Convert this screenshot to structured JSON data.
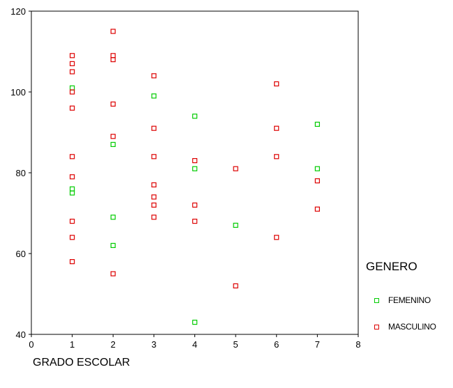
{
  "chart_data": {
    "type": "scatter",
    "xlabel": "GRADO ESCOLAR",
    "ylabel": "",
    "xlim": [
      0,
      8
    ],
    "ylim": [
      40,
      120
    ],
    "xticks": [
      "0",
      "1",
      "2",
      "3",
      "4",
      "5",
      "6",
      "7",
      "8"
    ],
    "yticks": [
      "40",
      "60",
      "80",
      "100",
      "120"
    ],
    "grid": false,
    "legend": {
      "title": "GENERO",
      "placement": "right"
    },
    "series": [
      {
        "name": "FEMENINO",
        "color": "#00cc00",
        "points": [
          [
            1,
            101
          ],
          [
            1,
            76
          ],
          [
            1,
            75
          ],
          [
            2,
            87
          ],
          [
            2,
            69
          ],
          [
            2,
            62
          ],
          [
            3,
            99
          ],
          [
            4,
            94
          ],
          [
            4,
            81
          ],
          [
            4,
            43
          ],
          [
            5,
            67
          ],
          [
            7,
            92
          ],
          [
            7,
            81
          ]
        ]
      },
      {
        "name": "MASCULINO",
        "color": "#dd0000",
        "points": [
          [
            1,
            109
          ],
          [
            1,
            107
          ],
          [
            1,
            105
          ],
          [
            1,
            100
          ],
          [
            1,
            96
          ],
          [
            1,
            84
          ],
          [
            1,
            79
          ],
          [
            1,
            68
          ],
          [
            1,
            64
          ],
          [
            1,
            58
          ],
          [
            2,
            115
          ],
          [
            2,
            109
          ],
          [
            2,
            108
          ],
          [
            2,
            97
          ],
          [
            2,
            89
          ],
          [
            2,
            55
          ],
          [
            3,
            104
          ],
          [
            3,
            91
          ],
          [
            3,
            84
          ],
          [
            3,
            77
          ],
          [
            3,
            74
          ],
          [
            3,
            72
          ],
          [
            3,
            69
          ],
          [
            4,
            83
          ],
          [
            4,
            72
          ],
          [
            4,
            68
          ],
          [
            5,
            81
          ],
          [
            5,
            52
          ],
          [
            6,
            102
          ],
          [
            6,
            91
          ],
          [
            6,
            84
          ],
          [
            6,
            64
          ],
          [
            7,
            78
          ],
          [
            7,
            71
          ]
        ]
      }
    ]
  }
}
